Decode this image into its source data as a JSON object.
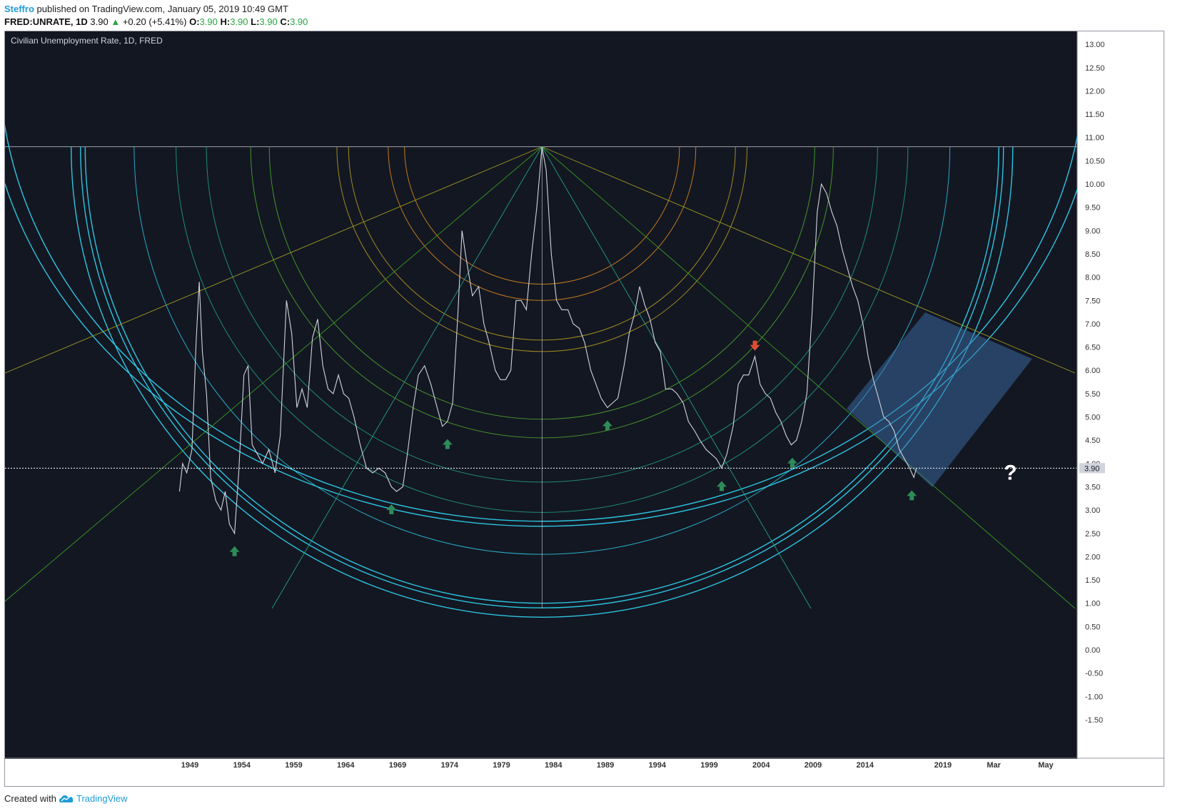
{
  "header": {
    "author": "Steffro",
    "published": "published on TradingView.com, January 05, 2019 10:49 GMT",
    "symbol": "FRED:UNRATE, 1D",
    "last": "3.90",
    "up_arrow": "▲",
    "change": "+0.20 (+5.41%)",
    "o_label": "O:",
    "o": "3.90",
    "h_label": "H:",
    "h": "3.90",
    "l_label": "L:",
    "l": "3.90",
    "c_label": "C:",
    "c": "3.90"
  },
  "footer": {
    "created_with": "Created with",
    "brand": "TradingView",
    "logo_icon": "tradingview-cloud-icon"
  },
  "colors": {
    "background": "#131722",
    "price_line": "#d1d4dc",
    "axis_text": "#b2b5be",
    "cyan": "#2ec4e0",
    "green_arrow": "#2e8b57",
    "red_arrow": "#e04c33",
    "last_price_badge": "#d1d4dc"
  },
  "chart_data": {
    "type": "line",
    "title": "Civilian Unemployment Rate, 1D, FRED",
    "xlabel": "",
    "ylabel": "",
    "ylim": [
      -1.5,
      13.2
    ],
    "y_ticks": [
      "13.00",
      "12.50",
      "12.00",
      "11.50",
      "11.00",
      "10.50",
      "10.00",
      "9.50",
      "9.00",
      "8.50",
      "8.00",
      "7.50",
      "7.00",
      "6.50",
      "6.00",
      "5.50",
      "5.00",
      "4.50",
      "4.00",
      "3.50",
      "3.00",
      "2.50",
      "2.00",
      "1.50",
      "1.00",
      "0.50",
      "0.00",
      "-0.50",
      "-1.00",
      "-1.50"
    ],
    "x_ticks": [
      {
        "label": "1949",
        "year": 1949
      },
      {
        "label": "1954",
        "year": 1954
      },
      {
        "label": "1959",
        "year": 1959
      },
      {
        "label": "1964",
        "year": 1964
      },
      {
        "label": "1969",
        "year": 1969
      },
      {
        "label": "1974",
        "year": 1974
      },
      {
        "label": "1979",
        "year": 1979
      },
      {
        "label": "1984",
        "year": 1984
      },
      {
        "label": "1989",
        "year": 1989
      },
      {
        "label": "1994",
        "year": 1994
      },
      {
        "label": "1999",
        "year": 1999
      },
      {
        "label": "2004",
        "year": 2004
      },
      {
        "label": "2009",
        "year": 2009
      },
      {
        "label": "2014",
        "year": 2014
      },
      {
        "label": "2019",
        "year": 2021.5
      },
      {
        "label": "Mar",
        "year": 2026.4
      },
      {
        "label": "May",
        "year": 2031.4
      }
    ],
    "last_price": "3.90",
    "series": [
      {
        "values": [
          [
            1948.0,
            3.4
          ],
          [
            1948.3,
            4.0
          ],
          [
            1948.7,
            3.8
          ],
          [
            1949.2,
            4.3
          ],
          [
            1949.6,
            6.6
          ],
          [
            1949.9,
            7.9
          ],
          [
            1950.2,
            6.4
          ],
          [
            1950.6,
            5.5
          ],
          [
            1951.0,
            3.7
          ],
          [
            1951.5,
            3.2
          ],
          [
            1952.0,
            3.0
          ],
          [
            1952.4,
            3.4
          ],
          [
            1952.8,
            2.7
          ],
          [
            1953.3,
            2.5
          ],
          [
            1953.7,
            3.8
          ],
          [
            1954.2,
            5.9
          ],
          [
            1954.6,
            6.1
          ],
          [
            1955.0,
            4.4
          ],
          [
            1955.5,
            4.2
          ],
          [
            1956.0,
            4.0
          ],
          [
            1956.6,
            4.3
          ],
          [
            1957.2,
            3.8
          ],
          [
            1957.7,
            4.6
          ],
          [
            1958.3,
            7.5
          ],
          [
            1958.8,
            6.8
          ],
          [
            1959.3,
            5.2
          ],
          [
            1959.8,
            5.6
          ],
          [
            1960.3,
            5.2
          ],
          [
            1960.8,
            6.7
          ],
          [
            1961.3,
            7.1
          ],
          [
            1961.8,
            6.1
          ],
          [
            1962.3,
            5.6
          ],
          [
            1962.8,
            5.5
          ],
          [
            1963.3,
            5.9
          ],
          [
            1963.8,
            5.5
          ],
          [
            1964.3,
            5.4
          ],
          [
            1964.8,
            5.0
          ],
          [
            1965.4,
            4.4
          ],
          [
            1966.0,
            3.9
          ],
          [
            1966.6,
            3.8
          ],
          [
            1967.2,
            3.9
          ],
          [
            1967.8,
            3.8
          ],
          [
            1968.4,
            3.5
          ],
          [
            1968.9,
            3.4
          ],
          [
            1969.5,
            3.5
          ],
          [
            1970.0,
            4.3
          ],
          [
            1970.5,
            5.2
          ],
          [
            1971.0,
            5.9
          ],
          [
            1971.6,
            6.1
          ],
          [
            1972.2,
            5.7
          ],
          [
            1972.8,
            5.2
          ],
          [
            1973.3,
            4.8
          ],
          [
            1973.8,
            4.9
          ],
          [
            1974.3,
            5.3
          ],
          [
            1974.8,
            7.2
          ],
          [
            1975.2,
            9.0
          ],
          [
            1975.6,
            8.4
          ],
          [
            1976.2,
            7.6
          ],
          [
            1976.8,
            7.8
          ],
          [
            1977.3,
            7.0
          ],
          [
            1977.8,
            6.6
          ],
          [
            1978.4,
            6.0
          ],
          [
            1978.9,
            5.8
          ],
          [
            1979.4,
            5.8
          ],
          [
            1979.9,
            6.0
          ],
          [
            1980.4,
            7.5
          ],
          [
            1980.9,
            7.5
          ],
          [
            1981.4,
            7.3
          ],
          [
            1981.9,
            8.5
          ],
          [
            1982.4,
            9.5
          ],
          [
            1982.9,
            10.8
          ],
          [
            1983.3,
            10.3
          ],
          [
            1983.8,
            8.5
          ],
          [
            1984.3,
            7.5
          ],
          [
            1984.8,
            7.3
          ],
          [
            1985.4,
            7.3
          ],
          [
            1985.9,
            7.0
          ],
          [
            1986.5,
            6.9
          ],
          [
            1987.0,
            6.6
          ],
          [
            1987.6,
            6.0
          ],
          [
            1988.1,
            5.7
          ],
          [
            1988.6,
            5.4
          ],
          [
            1989.2,
            5.2
          ],
          [
            1989.7,
            5.3
          ],
          [
            1990.2,
            5.4
          ],
          [
            1990.8,
            6.1
          ],
          [
            1991.3,
            6.8
          ],
          [
            1991.8,
            7.2
          ],
          [
            1992.3,
            7.8
          ],
          [
            1992.8,
            7.4
          ],
          [
            1993.3,
            7.1
          ],
          [
            1993.8,
            6.6
          ],
          [
            1994.3,
            6.4
          ],
          [
            1994.8,
            5.6
          ],
          [
            1995.4,
            5.6
          ],
          [
            1995.9,
            5.5
          ],
          [
            1996.5,
            5.3
          ],
          [
            1997.0,
            4.9
          ],
          [
            1997.6,
            4.7
          ],
          [
            1998.1,
            4.5
          ],
          [
            1998.7,
            4.3
          ],
          [
            1999.2,
            4.2
          ],
          [
            1999.7,
            4.1
          ],
          [
            2000.2,
            3.9
          ],
          [
            2000.7,
            4.2
          ],
          [
            2001.3,
            4.8
          ],
          [
            2001.8,
            5.7
          ],
          [
            2002.3,
            5.9
          ],
          [
            2002.8,
            5.9
          ],
          [
            2003.4,
            6.3
          ],
          [
            2003.9,
            5.7
          ],
          [
            2004.4,
            5.5
          ],
          [
            2004.9,
            5.4
          ],
          [
            2005.4,
            5.1
          ],
          [
            2005.9,
            4.9
          ],
          [
            2006.4,
            4.6
          ],
          [
            2006.9,
            4.4
          ],
          [
            2007.4,
            4.5
          ],
          [
            2007.9,
            4.9
          ],
          [
            2008.4,
            5.5
          ],
          [
            2008.9,
            7.2
          ],
          [
            2009.4,
            9.4
          ],
          [
            2009.8,
            10.0
          ],
          [
            2010.3,
            9.8
          ],
          [
            2010.8,
            9.4
          ],
          [
            2011.3,
            9.1
          ],
          [
            2011.8,
            8.6
          ],
          [
            2012.3,
            8.2
          ],
          [
            2012.8,
            7.8
          ],
          [
            2013.3,
            7.5
          ],
          [
            2013.8,
            7.0
          ],
          [
            2014.3,
            6.3
          ],
          [
            2014.8,
            5.8
          ],
          [
            2015.3,
            5.4
          ],
          [
            2015.8,
            5.0
          ],
          [
            2016.3,
            4.9
          ],
          [
            2016.8,
            4.7
          ],
          [
            2017.3,
            4.3
          ],
          [
            2017.8,
            4.1
          ],
          [
            2018.3,
            3.9
          ],
          [
            2018.7,
            3.7
          ],
          [
            2018.95,
            3.9
          ]
        ]
      }
    ],
    "annotations": {
      "green_up_arrows": [
        [
          1953.3,
          2.5
        ],
        [
          1968.4,
          3.4
        ],
        [
          1973.8,
          4.8
        ],
        [
          1989.2,
          5.2
        ],
        [
          2000.2,
          3.9
        ],
        [
          2007.0,
          4.4
        ],
        [
          2018.5,
          3.7
        ]
      ],
      "red_down_arrow": [
        2003.4,
        6.3
      ],
      "question_mark": {
        "text": "?",
        "at": [
          2028.0,
          3.65
        ]
      },
      "arc_centre": [
        1982.9,
        10.8
      ],
      "arc_levels": [
        10.8,
        7.85,
        7.5,
        6.65,
        6.4,
        4.95,
        4.55,
        3.6,
        2.95,
        2.05,
        1.0,
        0.9,
        0.7
      ]
    }
  }
}
